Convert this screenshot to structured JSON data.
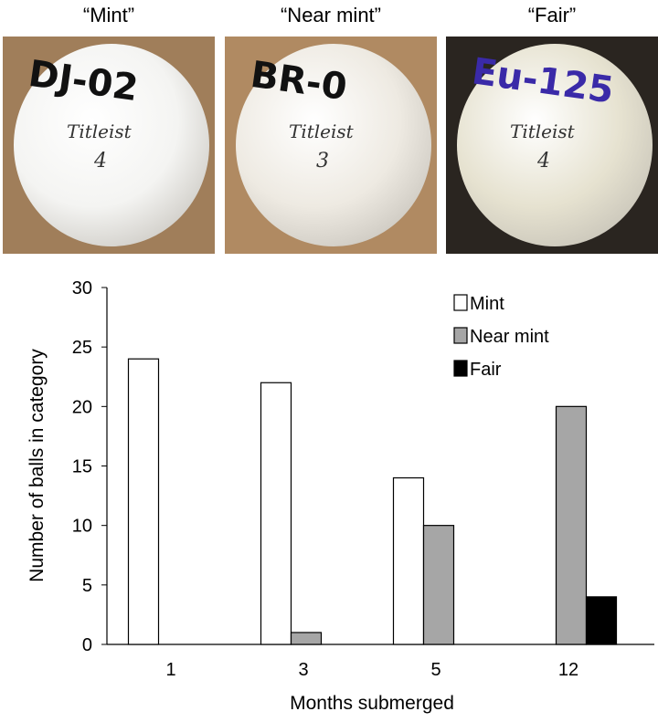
{
  "photos": [
    {
      "title": "“Mint”",
      "marking": "DJ-02",
      "brand": "Titleist",
      "number": "4",
      "ink": "#111111",
      "bg": "#a07e5a",
      "ball": "#f4f4f2"
    },
    {
      "title": "“Near mint”",
      "marking": "BR-0",
      "brand": "Titleist",
      "number": "3",
      "ink": "#111111",
      "bg": "#b08a62",
      "ball": "#eeeae2"
    },
    {
      "title": "“Fair”",
      "marking": "Eu-125",
      "brand": "Titleist",
      "number": "4",
      "ink": "#3a2aa8",
      "bg": "#2a2520",
      "ball": "#e6e2d0"
    }
  ],
  "chart_data": {
    "type": "bar",
    "categories": [
      "1",
      "3",
      "5",
      "12"
    ],
    "series": [
      {
        "name": "Mint",
        "values": [
          24,
          22,
          14,
          null
        ],
        "color": "#ffffff"
      },
      {
        "name": "Near mint",
        "values": [
          null,
          1,
          10,
          20
        ],
        "color": "#a6a6a6"
      },
      {
        "name": "Fair",
        "values": [
          null,
          null,
          null,
          4
        ],
        "color": "#000000"
      }
    ],
    "xlabel": "Months submerged",
    "ylabel": "Number of balls in category",
    "ylim": [
      0,
      30
    ],
    "yticks": [
      "0",
      "5",
      "10",
      "15",
      "20",
      "25",
      "30"
    ],
    "legend": "top-right",
    "grid": false
  }
}
